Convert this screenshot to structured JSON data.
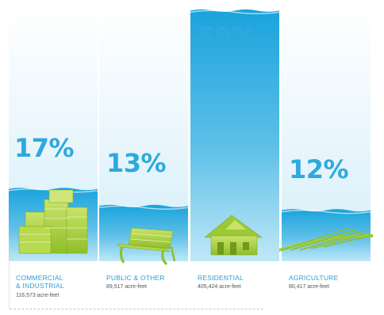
{
  "chart_data": {
    "type": "bar",
    "unit": "acre-feet",
    "categories": [
      "COMMERCIAL & INDUSTRIAL",
      "PUBLIC & OTHER",
      "RESIDENTIAL",
      "AGRICULTURE"
    ],
    "category_lines": [
      [
        "COMMERCIAL",
        "& INDUSTRIAL"
      ],
      [
        "PUBLIC & OTHER"
      ],
      [
        "RESIDENTIAL"
      ],
      [
        "AGRICULTURE"
      ]
    ],
    "values": [
      17,
      13,
      59,
      12
    ],
    "value_labels": [
      "17%",
      "13%",
      "59%",
      "12%"
    ],
    "amounts": [
      116573,
      89517,
      405424,
      80417
    ],
    "amount_labels": [
      "116,573 acre-feet",
      "89,517 acre-feet",
      "405,424 acre-feet",
      "80,417 acre-feet"
    ],
    "icons": [
      "buildings-icon",
      "bench-icon",
      "house-icon",
      "field-icon"
    ],
    "ylim": [
      0,
      60
    ],
    "colors": {
      "water_top": "#1aa3dc",
      "water_bottom": "#b9e6f6",
      "column_bg": "#eaf6fc",
      "label": "#2ea9de",
      "icon": "#a6cf3a"
    },
    "grid": false,
    "legend": "none"
  }
}
